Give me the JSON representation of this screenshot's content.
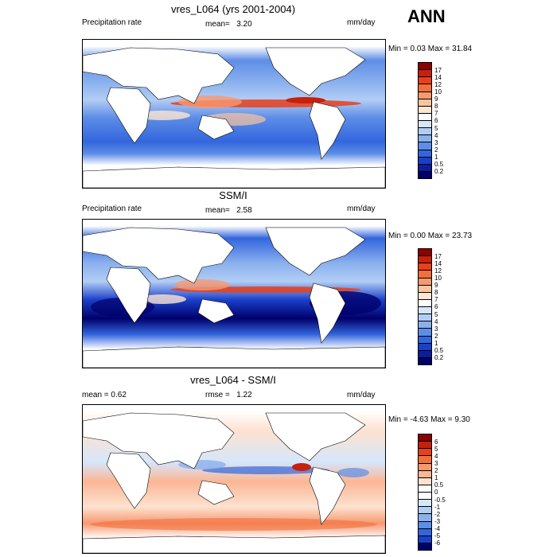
{
  "season": "ANN",
  "panels": [
    {
      "title": "vres_L064 (yrs 2001-2004)",
      "left_label": "Precipitation rate",
      "stat_label": "mean=",
      "stat_value": "3.20",
      "units": "mm/day",
      "minmax": "Min =   0.03 Max =  31.84",
      "levels": [
        "17",
        "14",
        "12",
        "10",
        "9",
        "8",
        "7",
        "6",
        "5",
        "4",
        "3",
        "2",
        "1",
        "0.5",
        "0.2"
      ],
      "colors": [
        "#8b0000",
        "#c8200a",
        "#e8401a",
        "#f26f3c",
        "#f79870",
        "#fbc4a0",
        "#fde6d2",
        "#ffffff",
        "#d6e6fb",
        "#b2cdf5",
        "#8ab0ee",
        "#5d8de6",
        "#3366dd",
        "#1a3fc9",
        "#0a1e9e",
        "#00006b"
      ]
    },
    {
      "title": "SSM/I",
      "left_label": "Precipitation rate",
      "stat_label": "mean=",
      "stat_value": "2.58",
      "units": "mm/day",
      "minmax": "Min =   0.00 Max =  23.73",
      "levels": [
        "17",
        "14",
        "12",
        "10",
        "9",
        "8",
        "7",
        "6",
        "5",
        "4",
        "3",
        "2",
        "1",
        "0.5",
        "0.2"
      ],
      "colors": [
        "#8b0000",
        "#c8200a",
        "#e8401a",
        "#f26f3c",
        "#f79870",
        "#fbc4a0",
        "#fde6d2",
        "#ffffff",
        "#d6e6fb",
        "#b2cdf5",
        "#8ab0ee",
        "#5d8de6",
        "#3366dd",
        "#1a3fc9",
        "#0a1e9e",
        "#00006b"
      ]
    },
    {
      "title": "vres_L064 - SSM/I",
      "left_label": "mean =   0.62",
      "stat_label": "rmse =",
      "stat_value": "1.22",
      "units": "mm/day",
      "minmax": "Min =  -4.63 Max =   9.30",
      "levels": [
        "6",
        "5",
        "4",
        "3",
        "2",
        "1",
        "0.5",
        "0",
        "-0.5",
        "-1",
        "-2",
        "-3",
        "-4",
        "-5",
        "-6"
      ],
      "colors": [
        "#8b0000",
        "#c8200a",
        "#e8401a",
        "#f26f3c",
        "#f79870",
        "#fbb694",
        "#fde2d0",
        "#ffffff",
        "#ffffff",
        "#d6e6fb",
        "#b2cdf5",
        "#8ab0ee",
        "#5d8de6",
        "#3366dd",
        "#1a3fc9",
        "#00006b"
      ]
    }
  ]
}
